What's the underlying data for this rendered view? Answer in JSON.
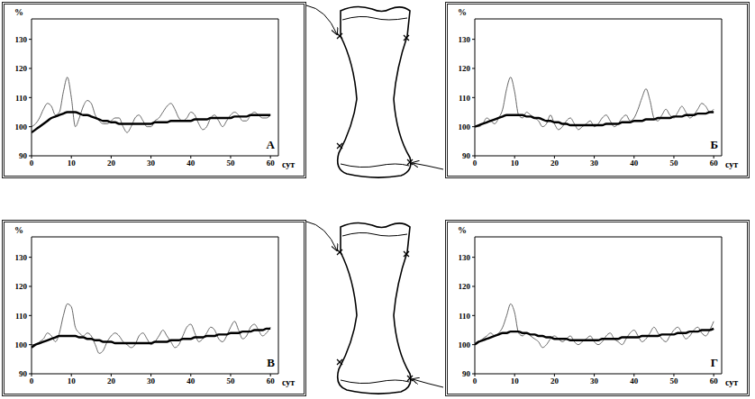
{
  "chart_data": [
    {
      "type": "line",
      "title": "А",
      "x_label": "сут",
      "y_label": "%",
      "xlim": [
        0,
        62
      ],
      "xticks": [
        0,
        10,
        20,
        30,
        40,
        50,
        60
      ],
      "ylim": [
        90,
        137
      ],
      "yticks": [
        90,
        100,
        110,
        120,
        130
      ],
      "grid": false,
      "x": [
        0,
        1,
        2,
        3,
        4,
        5,
        6,
        7,
        8,
        9,
        10,
        11,
        12,
        13,
        14,
        15,
        16,
        17,
        18,
        19,
        20,
        21,
        22,
        23,
        24,
        25,
        26,
        27,
        28,
        29,
        30,
        31,
        32,
        33,
        34,
        35,
        36,
        37,
        38,
        39,
        40,
        41,
        42,
        43,
        44,
        45,
        46,
        47,
        48,
        49,
        50,
        51,
        52,
        53,
        54,
        55,
        56,
        57,
        58,
        59,
        60
      ],
      "series": [
        {
          "color": "#555555",
          "line_style": "solid",
          "values": [
            100,
            101,
            103,
            106,
            108,
            107,
            104,
            105,
            112,
            117,
            110,
            100,
            103,
            107,
            109,
            108,
            104,
            102,
            101,
            101,
            102,
            103,
            103,
            100,
            98,
            100,
            103,
            104,
            102,
            100,
            100,
            102,
            103,
            105,
            107,
            108,
            106,
            103,
            102,
            103,
            105,
            104,
            101,
            99,
            100,
            103,
            104,
            102,
            100,
            102,
            104,
            105,
            104,
            102,
            102,
            104,
            105,
            104,
            103,
            103,
            104
          ]
        },
        {
          "color": "#000000",
          "line_style": "solid",
          "values": [
            98,
            99,
            100,
            101,
            102,
            103,
            103.5,
            104,
            104.5,
            105,
            105,
            105,
            104.5,
            104,
            104,
            103.5,
            103,
            102.5,
            102,
            102,
            101.5,
            101.5,
            101,
            101,
            101,
            101,
            101,
            101,
            101,
            101,
            101,
            101.5,
            101.5,
            101.5,
            101.5,
            102,
            102,
            102,
            102,
            102,
            102,
            102.5,
            102.5,
            102.5,
            102.5,
            103,
            103,
            103,
            103,
            103,
            103,
            103.5,
            103.5,
            103.5,
            103.5,
            104,
            104,
            104,
            104,
            104,
            104
          ]
        }
      ]
    },
    {
      "type": "line",
      "title": "Б",
      "x_label": "сут",
      "y_label": "%",
      "xlim": [
        0,
        62
      ],
      "xticks": [
        0,
        10,
        20,
        30,
        40,
        50,
        60
      ],
      "ylim": [
        90,
        137
      ],
      "yticks": [
        90,
        100,
        110,
        120,
        130
      ],
      "grid": false,
      "x": [
        0,
        1,
        2,
        3,
        4,
        5,
        6,
        7,
        8,
        9,
        10,
        11,
        12,
        13,
        14,
        15,
        16,
        17,
        18,
        19,
        20,
        21,
        22,
        23,
        24,
        25,
        26,
        27,
        28,
        29,
        30,
        31,
        32,
        33,
        34,
        35,
        36,
        37,
        38,
        39,
        40,
        41,
        42,
        43,
        44,
        45,
        46,
        47,
        48,
        49,
        50,
        51,
        52,
        53,
        54,
        55,
        56,
        57,
        58,
        59,
        60
      ],
      "series": [
        {
          "color": "#555555",
          "line_style": "solid",
          "values": [
            100,
            100,
            101,
            103,
            102,
            101,
            103,
            106,
            113,
            117,
            112,
            104,
            103,
            105,
            104,
            103,
            102,
            100,
            101,
            104,
            101,
            99,
            100,
            102,
            103,
            101,
            99,
            100,
            101,
            102,
            100,
            101,
            103,
            104,
            102,
            100,
            101,
            103,
            104,
            102,
            103,
            106,
            110,
            113,
            109,
            103,
            102,
            104,
            106,
            104,
            103,
            105,
            107,
            105,
            103,
            104,
            106,
            108,
            107,
            105,
            106
          ]
        },
        {
          "color": "#000000",
          "line_style": "solid",
          "values": [
            100,
            100.5,
            101,
            101.5,
            102,
            102.5,
            103,
            103.5,
            104,
            104,
            104,
            104,
            104,
            103.5,
            103.5,
            103,
            103,
            102.5,
            102,
            102,
            101.5,
            101.5,
            101,
            101,
            100.5,
            100.5,
            100.5,
            100.5,
            100.5,
            100.5,
            100.5,
            100.5,
            100.5,
            101,
            101,
            101,
            101,
            101.5,
            101.5,
            101.5,
            102,
            102,
            102,
            102.5,
            102.5,
            102.5,
            103,
            103,
            103,
            103,
            103.5,
            103.5,
            103.5,
            104,
            104,
            104,
            104.5,
            104.5,
            104.5,
            105,
            105
          ]
        }
      ]
    },
    {
      "type": "line",
      "title": "В",
      "x_label": "сут",
      "y_label": "%",
      "xlim": [
        0,
        62
      ],
      "xticks": [
        0,
        10,
        20,
        30,
        40,
        50,
        60
      ],
      "ylim": [
        90,
        137
      ],
      "yticks": [
        90,
        100,
        110,
        120,
        130
      ],
      "grid": false,
      "x": [
        0,
        1,
        2,
        3,
        4,
        5,
        6,
        7,
        8,
        9,
        10,
        11,
        12,
        13,
        14,
        15,
        16,
        17,
        18,
        19,
        20,
        21,
        22,
        23,
        24,
        25,
        26,
        27,
        28,
        29,
        30,
        31,
        32,
        33,
        34,
        35,
        36,
        37,
        38,
        39,
        40,
        41,
        42,
        43,
        44,
        45,
        46,
        47,
        48,
        49,
        50,
        51,
        52,
        53,
        54,
        55,
        56,
        57,
        58,
        59,
        60
      ],
      "series": [
        {
          "color": "#555555",
          "line_style": "solid",
          "values": [
            100,
            100,
            101,
            102,
            104,
            103,
            101,
            104,
            110,
            114,
            113,
            106,
            104,
            103,
            104,
            103,
            100,
            97,
            98,
            101,
            103,
            104,
            103,
            101,
            100,
            99,
            100,
            103,
            104,
            102,
            100,
            101,
            103,
            105,
            103,
            101,
            99,
            100,
            103,
            106,
            107,
            104,
            101,
            102,
            104,
            106,
            105,
            102,
            101,
            103,
            106,
            108,
            105,
            102,
            103,
            106,
            107,
            105,
            103,
            104,
            106
          ]
        },
        {
          "color": "#000000",
          "line_style": "solid",
          "values": [
            99,
            100,
            100.5,
            101,
            101.5,
            102,
            102.5,
            103,
            103,
            103,
            103,
            103,
            102.5,
            102.5,
            102,
            102,
            101.5,
            101.5,
            101,
            101,
            101,
            100.5,
            100.5,
            100.5,
            100.5,
            100.5,
            100.5,
            100.5,
            100.5,
            100.5,
            100.5,
            101,
            101,
            101,
            101,
            101.5,
            101.5,
            101.5,
            102,
            102,
            102,
            102.5,
            102.5,
            102.5,
            103,
            103,
            103,
            103.5,
            103.5,
            103.5,
            104,
            104,
            104,
            104.5,
            104.5,
            104.5,
            105,
            105,
            105,
            105.5,
            105.5
          ]
        }
      ]
    },
    {
      "type": "line",
      "title": "Г",
      "x_label": "сут",
      "y_label": "%",
      "xlim": [
        0,
        62
      ],
      "xticks": [
        0,
        10,
        20,
        30,
        40,
        50,
        60
      ],
      "ylim": [
        90,
        137
      ],
      "yticks": [
        90,
        100,
        110,
        120,
        130
      ],
      "grid": false,
      "x": [
        0,
        1,
        2,
        3,
        4,
        5,
        6,
        7,
        8,
        9,
        10,
        11,
        12,
        13,
        14,
        15,
        16,
        17,
        18,
        19,
        20,
        21,
        22,
        23,
        24,
        25,
        26,
        27,
        28,
        29,
        30,
        31,
        32,
        33,
        34,
        35,
        36,
        37,
        38,
        39,
        40,
        41,
        42,
        43,
        44,
        45,
        46,
        47,
        48,
        49,
        50,
        51,
        52,
        53,
        54,
        55,
        56,
        57,
        58,
        59,
        60
      ],
      "series": [
        {
          "color": "#555555",
          "line_style": "solid",
          "values": [
            100,
            101,
            102,
            103,
            104,
            103,
            104,
            106,
            110,
            114,
            111,
            104,
            103,
            104,
            103,
            102,
            101,
            99,
            100,
            102,
            103,
            102,
            101,
            102,
            103,
            101,
            100,
            101,
            102,
            103,
            101,
            100,
            101,
            103,
            104,
            102,
            101,
            100,
            102,
            104,
            105,
            103,
            101,
            102,
            104,
            106,
            104,
            102,
            101,
            103,
            105,
            106,
            104,
            102,
            103,
            105,
            106,
            104,
            103,
            105,
            108
          ]
        },
        {
          "color": "#000000",
          "line_style": "solid",
          "values": [
            100,
            101,
            101.5,
            102,
            102.5,
            103,
            103.5,
            104,
            104,
            104.5,
            104.5,
            104.5,
            104,
            104,
            103.5,
            103.5,
            103,
            103,
            102.5,
            102.5,
            102,
            102,
            102,
            102,
            101.5,
            101.5,
            101.5,
            101.5,
            101.5,
            101.5,
            101.5,
            101.5,
            102,
            102,
            102,
            102,
            102,
            102.5,
            102.5,
            102.5,
            102.5,
            102.5,
            103,
            103,
            103,
            103,
            103,
            103.5,
            103.5,
            103.5,
            103.5,
            104,
            104,
            104,
            104.5,
            104.5,
            104.5,
            105,
            105,
            105,
            105.5
          ]
        }
      ]
    }
  ]
}
